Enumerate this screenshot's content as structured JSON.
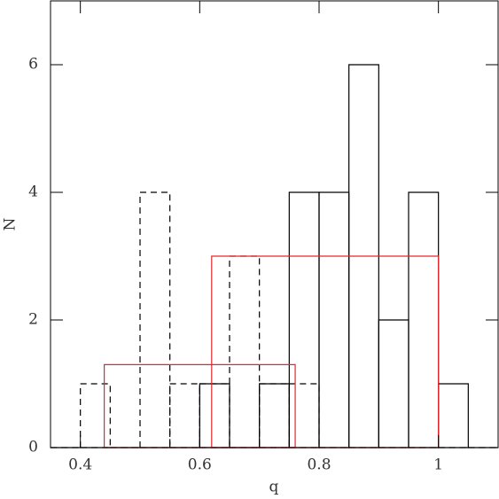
{
  "chart_data": {
    "type": "histogram",
    "xlabel": "q",
    "ylabel": "N",
    "xlim": [
      0.35,
      1.1
    ],
    "ylim": [
      0,
      7
    ],
    "xticks": [
      0.4,
      0.6,
      0.8,
      1
    ],
    "yticks": [
      0,
      2,
      4,
      6
    ],
    "series": [
      {
        "color": "#000000",
        "linestyle": "solid",
        "bins": [
          0.35,
          0.4,
          0.45,
          0.5,
          0.55,
          0.6,
          0.65,
          0.7,
          0.75,
          0.8,
          0.85,
          0.9,
          0.95,
          1.0,
          1.05,
          1.1
        ],
        "values": [
          0,
          0,
          0,
          0,
          0,
          1,
          0,
          1,
          4,
          4,
          6,
          2,
          4,
          1,
          0
        ]
      },
      {
        "color": "#000000",
        "linestyle": "dashed",
        "bins": [
          0.35,
          0.4,
          0.45,
          0.5,
          0.55,
          0.6,
          0.65,
          0.7,
          0.75,
          0.8,
          0.85,
          0.9,
          0.95,
          1.0,
          1.05,
          1.1
        ],
        "values": [
          0,
          1,
          0,
          4,
          1,
          1,
          3,
          1,
          1,
          0,
          0,
          0,
          0,
          0,
          0
        ]
      },
      {
        "color": "#e8262b",
        "linestyle": "solid",
        "bins": [
          0.44,
          0.76
        ],
        "values": [
          1.3
        ]
      },
      {
        "color": "#e8262b",
        "linestyle": "solid",
        "bins": [
          0.62,
          1.0
        ],
        "values": [
          3
        ]
      }
    ]
  }
}
